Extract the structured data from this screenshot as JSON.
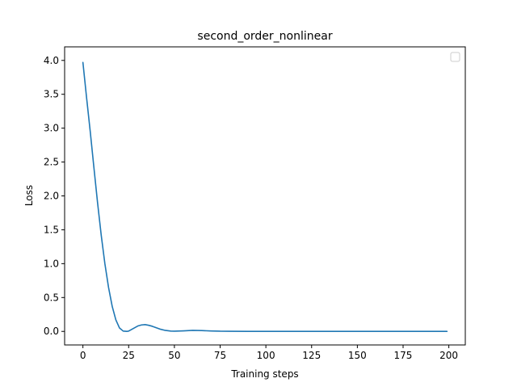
{
  "chart_data": {
    "type": "line",
    "title": "second_order_nonlinear",
    "xlabel": "Training steps",
    "ylabel": "Loss",
    "xlim": [
      -10,
      209
    ],
    "ylim": [
      -0.2,
      4.2
    ],
    "xticks": [
      0,
      25,
      50,
      75,
      100,
      125,
      150,
      175,
      200
    ],
    "xtick_labels": [
      "0",
      "25",
      "50",
      "75",
      "100",
      "125",
      "150",
      "175",
      "200"
    ],
    "yticks": [
      0.0,
      0.5,
      1.0,
      1.5,
      2.0,
      2.5,
      3.0,
      3.5,
      4.0
    ],
    "ytick_labels": [
      "0.0",
      "0.5",
      "1.0",
      "1.5",
      "2.0",
      "2.5",
      "3.0",
      "3.5",
      "4.0"
    ],
    "grid": false,
    "legend": {
      "placement": "upper right",
      "entries": []
    },
    "series": [
      {
        "color": "#1f77b4",
        "x": [
          0,
          2,
          4,
          6,
          8,
          10,
          12,
          14,
          16,
          18,
          20,
          22,
          24,
          25,
          26,
          28,
          30,
          32,
          34,
          36,
          38,
          40,
          42,
          45,
          48,
          50,
          55,
          60,
          65,
          70,
          75,
          80,
          90,
          100,
          110,
          120,
          130,
          140,
          150,
          160,
          170,
          180,
          190,
          199
        ],
        "y": [
          3.97,
          3.45,
          2.95,
          2.42,
          1.9,
          1.42,
          1.0,
          0.65,
          0.37,
          0.17,
          0.05,
          0.005,
          0.0,
          0.005,
          0.02,
          0.05,
          0.08,
          0.095,
          0.1,
          0.09,
          0.075,
          0.055,
          0.035,
          0.015,
          0.005,
          0.003,
          0.008,
          0.015,
          0.012,
          0.007,
          0.003,
          0.002,
          0.001,
          0.0,
          0.0,
          0.0,
          0.0,
          0.0,
          0.0,
          0.0,
          0.0,
          0.0,
          0.0,
          0.0
        ]
      }
    ]
  }
}
